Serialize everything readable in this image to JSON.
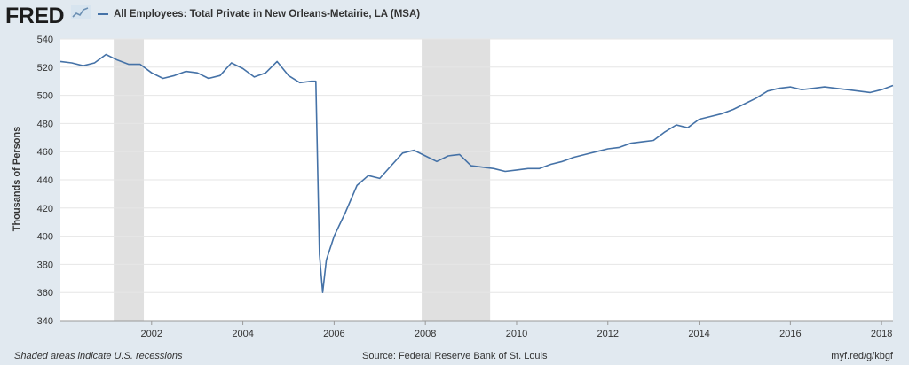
{
  "header": {
    "logo_text": "FRED",
    "series_title": "All Employees: Total Private in New Orleans-Metairie, LA (MSA)"
  },
  "colors": {
    "line": "#4572a7",
    "recession": "#e0e0e0",
    "background": "#e1e9f0",
    "grid": "#e6e6e6"
  },
  "footer": {
    "note": "Shaded areas indicate U.S. recessions",
    "source": "Source: Federal Reserve Bank of St. Louis",
    "url": "myf.red/g/kbgf"
  },
  "chart_data": {
    "type": "line",
    "title": "All Employees: Total Private in New Orleans-Metairie, LA (MSA)",
    "xlabel": "",
    "ylabel": "Thousands of Persons",
    "xlim": [
      2000.0,
      2018.25
    ],
    "ylim": [
      340,
      540
    ],
    "yticks": [
      340,
      360,
      380,
      400,
      420,
      440,
      460,
      480,
      500,
      520,
      540
    ],
    "xticks": [
      2002,
      2004,
      2006,
      2008,
      2010,
      2012,
      2014,
      2016,
      2018
    ],
    "grid": "horizontal",
    "recessions": [
      [
        2001.17,
        2001.83
      ],
      [
        2007.92,
        2009.42
      ]
    ],
    "series": [
      {
        "name": "All Employees: Total Private in New Orleans-Metairie, LA (MSA)",
        "x": [
          2000.0,
          2000.25,
          2000.5,
          2000.75,
          2001.0,
          2001.25,
          2001.5,
          2001.75,
          2002.0,
          2002.25,
          2002.5,
          2002.75,
          2003.0,
          2003.25,
          2003.5,
          2003.75,
          2004.0,
          2004.25,
          2004.5,
          2004.75,
          2005.0,
          2005.25,
          2005.5,
          2005.6,
          2005.68,
          2005.75,
          2005.83,
          2006.0,
          2006.25,
          2006.5,
          2006.75,
          2007.0,
          2007.25,
          2007.5,
          2007.75,
          2008.0,
          2008.25,
          2008.5,
          2008.75,
          2009.0,
          2009.25,
          2009.5,
          2009.75,
          2010.0,
          2010.25,
          2010.5,
          2010.75,
          2011.0,
          2011.25,
          2011.5,
          2011.75,
          2012.0,
          2012.25,
          2012.5,
          2012.75,
          2013.0,
          2013.25,
          2013.5,
          2013.75,
          2014.0,
          2014.25,
          2014.5,
          2014.75,
          2015.0,
          2015.25,
          2015.5,
          2015.75,
          2016.0,
          2016.25,
          2016.5,
          2016.75,
          2017.0,
          2017.25,
          2017.5,
          2017.75,
          2018.0,
          2018.25
        ],
        "y": [
          524,
          523,
          521,
          523,
          529,
          525,
          522,
          522,
          516,
          512,
          514,
          517,
          516,
          512,
          514,
          523,
          519,
          513,
          516,
          524,
          514,
          509,
          510,
          510,
          387,
          360,
          383,
          400,
          417,
          436,
          443,
          441,
          450,
          459,
          461,
          457,
          453,
          457,
          458,
          450,
          449,
          448,
          446,
          447,
          448,
          448,
          451,
          453,
          456,
          458,
          460,
          462,
          463,
          466,
          467,
          468,
          474,
          479,
          477,
          483,
          485,
          487,
          490,
          494,
          498,
          503,
          505,
          506,
          504,
          505,
          506,
          505,
          504,
          503,
          502,
          504,
          507
        ]
      }
    ]
  }
}
